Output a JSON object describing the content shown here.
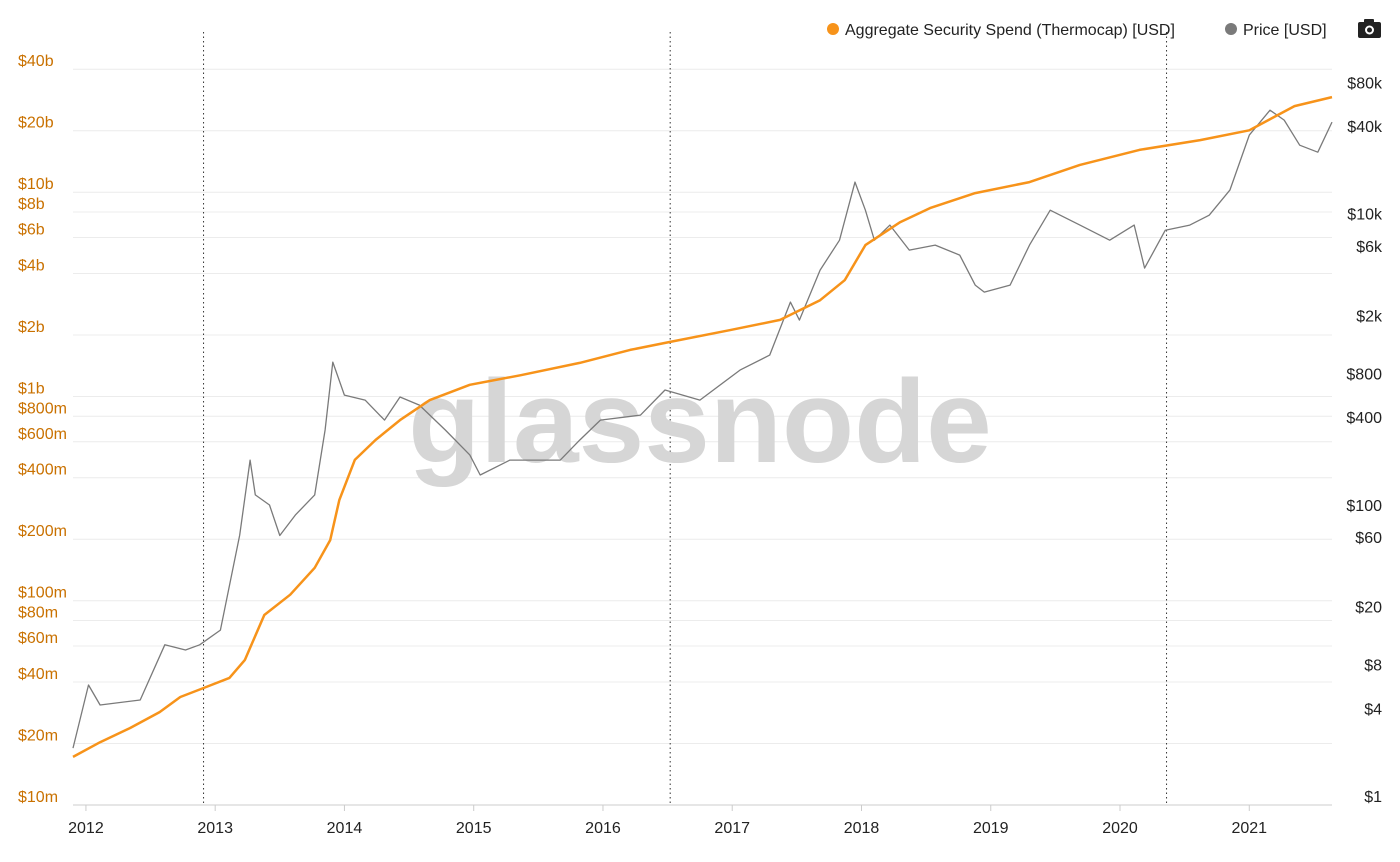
{
  "chart_data": {
    "type": "line",
    "watermark": "glassnode",
    "log_scale": true,
    "grid": true,
    "legend_position": "top-right",
    "xlim": [
      2011.9,
      2021.64
    ],
    "xticks": [
      2012,
      2013,
      2014,
      2015,
      2016,
      2017,
      2018,
      2019,
      2020,
      2021
    ],
    "vlines": [
      2012.91,
      2016.52,
      2020.36
    ],
    "ylim": [
      10000000,
      55600000000
    ],
    "yticks": [
      {
        "value": 10000000,
        "label": "$10m"
      },
      {
        "value": 20000000,
        "label": "$20m"
      },
      {
        "value": 40000000,
        "label": "$40m"
      },
      {
        "value": 60000000,
        "label": "$60m"
      },
      {
        "value": 80000000,
        "label": "$80m"
      },
      {
        "value": 100000000,
        "label": "$100m"
      },
      {
        "value": 200000000,
        "label": "$200m"
      },
      {
        "value": 400000000,
        "label": "$400m"
      },
      {
        "value": 600000000,
        "label": "$600m"
      },
      {
        "value": 800000000,
        "label": "$800m"
      },
      {
        "value": 1000000000,
        "label": "$1b"
      },
      {
        "value": 2000000000,
        "label": "$2b"
      },
      {
        "value": 4000000000,
        "label": "$4b"
      },
      {
        "value": 6000000000,
        "label": "$6b"
      },
      {
        "value": 8000000000,
        "label": "$8b"
      },
      {
        "value": 10000000000,
        "label": "$10b"
      },
      {
        "value": 20000000000,
        "label": "$20b"
      },
      {
        "value": 40000000000,
        "label": "$40b"
      }
    ],
    "y2lim": [
      1,
      180000
    ],
    "y2ticks": [
      {
        "value": 1,
        "label": "$1"
      },
      {
        "value": 4,
        "label": "$4"
      },
      {
        "value": 8,
        "label": "$8"
      },
      {
        "value": 20,
        "label": "$20"
      },
      {
        "value": 60,
        "label": "$60"
      },
      {
        "value": 100,
        "label": "$100"
      },
      {
        "value": 400,
        "label": "$400"
      },
      {
        "value": 800,
        "label": "$800"
      },
      {
        "value": 2000,
        "label": "$2k"
      },
      {
        "value": 6000,
        "label": "$6k"
      },
      {
        "value": 10000,
        "label": "$10k"
      },
      {
        "value": 40000,
        "label": "$40k"
      },
      {
        "value": 80000,
        "label": "$80k"
      }
    ],
    "series": [
      {
        "name": "Aggregate Security Spend (Thermocap) [USD]",
        "color": "#f7931a",
        "axis": "y",
        "x": [
          2011.9,
          2012.11,
          2012.34,
          2012.57,
          2012.73,
          2012.91,
          2013.11,
          2013.23,
          2013.38,
          2013.58,
          2013.77,
          2013.89,
          2013.96,
          2014.08,
          2014.24,
          2014.43,
          2014.66,
          2014.97,
          2015.36,
          2015.82,
          2016.21,
          2016.52,
          2016.98,
          2017.37,
          2017.68,
          2017.87,
          2018.03,
          2018.3,
          2018.53,
          2018.88,
          2019.3,
          2019.69,
          2020.15,
          2020.62,
          2021.0,
          2021.35,
          2021.64
        ],
        "values": [
          17200000,
          20300000,
          23800000,
          28500000,
          33800000,
          37400000,
          41900000,
          51300000,
          85100000,
          107000000,
          145000000,
          198000000,
          311000000,
          489000000,
          612000000,
          766000000,
          960000000,
          1140000000,
          1270000000,
          1460000000,
          1690000000,
          1850000000,
          2110000000,
          2370000000,
          2960000000,
          3710000000,
          5510000000,
          7140000000,
          8360000000,
          9900000000,
          11200000000,
          13600000000,
          16100000000,
          18000000000,
          20100000000,
          26400000000,
          29200000000
        ]
      },
      {
        "name": "Price [USD]",
        "color": "#7a7a7a",
        "axis": "y2",
        "x": [
          2011.9,
          2012.02,
          2012.11,
          2012.42,
          2012.61,
          2012.77,
          2012.88,
          2013.04,
          2013.19,
          2013.27,
          2013.31,
          2013.42,
          2013.5,
          2013.62,
          2013.77,
          2013.85,
          2013.91,
          2014.0,
          2014.16,
          2014.31,
          2014.43,
          2014.58,
          2014.78,
          2014.97,
          2015.05,
          2015.28,
          2015.51,
          2015.67,
          2015.82,
          2015.98,
          2016.29,
          2016.48,
          2016.75,
          2017.06,
          2017.29,
          2017.45,
          2017.52,
          2017.68,
          2017.83,
          2017.95,
          2018.03,
          2018.1,
          2018.22,
          2018.37,
          2018.57,
          2018.76,
          2018.88,
          2018.95,
          2019.15,
          2019.3,
          2019.46,
          2019.69,
          2019.92,
          2020.11,
          2020.19,
          2020.35,
          2020.54,
          2020.69,
          2020.85,
          2021.0,
          2021.16,
          2021.27,
          2021.39,
          2021.53,
          2021.64
        ],
        "values": [
          2.46,
          6.67,
          4.86,
          5.26,
          12.6,
          11.6,
          12.6,
          15.9,
          71.5,
          234,
          135,
          115,
          71,
          98,
          135,
          377,
          1103,
          654,
          605,
          441,
          635,
          559,
          377,
          254,
          185,
          234,
          234,
          234,
          321,
          441,
          477,
          709,
          605,
          972,
          1233,
          2851,
          2143,
          4725,
          7590,
          19000,
          12200,
          7590,
          9630,
          6490,
          7020,
          5990,
          3726,
          3340,
          3726,
          7020,
          12200,
          9630,
          7590,
          9630,
          4880,
          8890,
          9630,
          11270,
          16750,
          40000,
          59300,
          50700,
          34100,
          30500,
          49100
        ]
      }
    ]
  }
}
